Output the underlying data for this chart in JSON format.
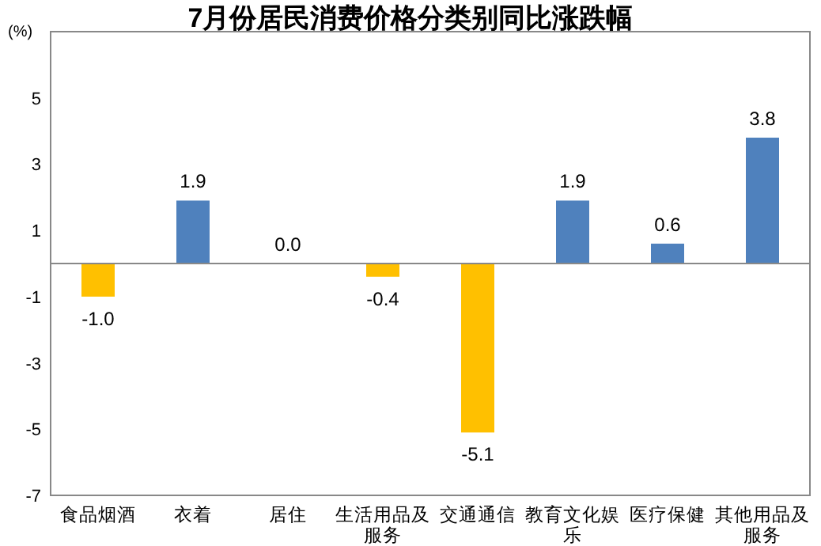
{
  "chart_data": {
    "type": "bar",
    "title": "7月份居民消费价格分类别同比涨跌幅",
    "ylabel": "(%)",
    "categories": [
      "食品烟酒",
      "衣着",
      "居住",
      "生活用品及服务",
      "交通通信",
      "教育文化娱乐",
      "医疗保健",
      "其他用品及服务"
    ],
    "values": [
      -1.0,
      1.9,
      0.0,
      -0.4,
      -5.1,
      1.9,
      0.6,
      3.8
    ],
    "colors": [
      "#ffc000",
      "#4f81bd",
      "#4f81bd",
      "#ffc000",
      "#ffc000",
      "#4f81bd",
      "#4f81bd",
      "#4f81bd"
    ],
    "value_labels": [
      "-1.0",
      "1.9",
      "0.0",
      "-0.4",
      "-5.1",
      "1.9",
      "0.6",
      "3.8"
    ],
    "ylim": [
      -7,
      7
    ],
    "yticks": [
      -7,
      -5,
      -3,
      -1,
      1,
      3,
      5
    ]
  }
}
